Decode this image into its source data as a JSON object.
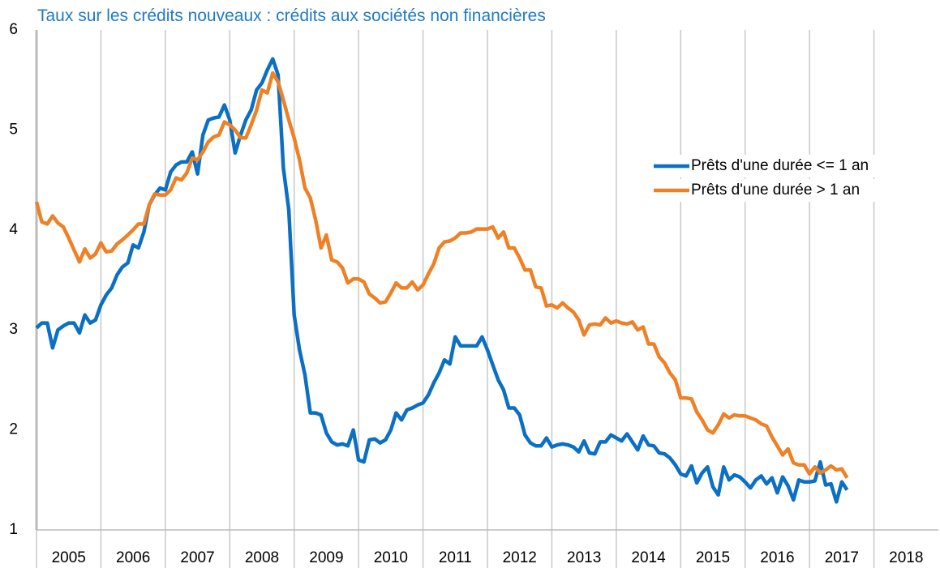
{
  "chart_data": {
    "type": "line",
    "title": "Taux sur les crédits nouveaux : crédits aux sociétés non financières",
    "x": [
      2005,
      2005.083,
      2005.167,
      2005.25,
      2005.333,
      2005.417,
      2005.5,
      2005.583,
      2005.667,
      2005.75,
      2005.833,
      2005.917,
      2006,
      2006.083,
      2006.167,
      2006.25,
      2006.333,
      2006.417,
      2006.5,
      2006.583,
      2006.667,
      2006.75,
      2006.833,
      2006.917,
      2007,
      2007.083,
      2007.167,
      2007.25,
      2007.333,
      2007.417,
      2007.5,
      2007.583,
      2007.667,
      2007.75,
      2007.833,
      2007.917,
      2008,
      2008.083,
      2008.167,
      2008.25,
      2008.333,
      2008.417,
      2008.5,
      2008.583,
      2008.667,
      2008.75,
      2008.833,
      2008.917,
      2009,
      2009.083,
      2009.167,
      2009.25,
      2009.333,
      2009.417,
      2009.5,
      2009.583,
      2009.667,
      2009.75,
      2009.833,
      2009.917,
      2010,
      2010.083,
      2010.167,
      2010.25,
      2010.333,
      2010.417,
      2010.5,
      2010.583,
      2010.667,
      2010.75,
      2010.833,
      2010.917,
      2011,
      2011.083,
      2011.167,
      2011.25,
      2011.333,
      2011.417,
      2011.5,
      2011.583,
      2011.667,
      2011.75,
      2011.833,
      2011.917,
      2012,
      2012.083,
      2012.167,
      2012.25,
      2012.333,
      2012.417,
      2012.5,
      2012.583,
      2012.667,
      2012.75,
      2012.833,
      2012.917,
      2013,
      2013.083,
      2013.167,
      2013.25,
      2013.333,
      2013.417,
      2013.5,
      2013.583,
      2013.667,
      2013.75,
      2013.833,
      2013.917,
      2014,
      2014.083,
      2014.167,
      2014.25,
      2014.333,
      2014.417,
      2014.5,
      2014.583,
      2014.667,
      2014.75,
      2014.833,
      2014.917,
      2015,
      2015.083,
      2015.167,
      2015.25,
      2015.333,
      2015.417,
      2015.5,
      2015.583,
      2015.667,
      2015.75,
      2015.833,
      2015.917,
      2016,
      2016.083,
      2016.167,
      2016.25,
      2016.333,
      2016.417,
      2016.5,
      2016.583,
      2016.667,
      2016.75,
      2016.833,
      2016.917,
      2017,
      2017.083,
      2017.167,
      2017.25,
      2017.333,
      2017.417,
      2017.5,
      2017.583
    ],
    "series": [
      {
        "name": "Prêts d'une durée <= 1 an",
        "color": "#0b6fc4",
        "values": [
          3.02,
          3.07,
          3.07,
          2.82,
          3.0,
          3.04,
          3.07,
          3.07,
          2.97,
          3.15,
          3.07,
          3.1,
          3.25,
          3.35,
          3.42,
          3.55,
          3.63,
          3.67,
          3.85,
          3.82,
          3.98,
          4.25,
          4.35,
          4.42,
          4.4,
          4.58,
          4.65,
          4.68,
          4.68,
          4.78,
          4.56,
          4.95,
          5.1,
          5.12,
          5.13,
          5.25,
          5.1,
          4.77,
          4.95,
          5.1,
          5.2,
          5.4,
          5.47,
          5.6,
          5.71,
          5.55,
          4.62,
          4.2,
          3.15,
          2.8,
          2.55,
          2.17,
          2.17,
          2.15,
          1.97,
          1.88,
          1.85,
          1.86,
          1.84,
          2.0,
          1.7,
          1.68,
          1.9,
          1.91,
          1.87,
          1.9,
          2.0,
          2.17,
          2.1,
          2.2,
          2.22,
          2.25,
          2.27,
          2.35,
          2.47,
          2.57,
          2.7,
          2.66,
          2.93,
          2.84,
          2.84,
          2.84,
          2.84,
          2.93,
          2.8,
          2.65,
          2.5,
          2.4,
          2.22,
          2.22,
          2.15,
          1.95,
          1.87,
          1.84,
          1.84,
          1.92,
          1.83,
          1.85,
          1.86,
          1.85,
          1.83,
          1.78,
          1.89,
          1.77,
          1.76,
          1.88,
          1.88,
          1.95,
          1.92,
          1.89,
          1.96,
          1.88,
          1.8,
          1.94,
          1.85,
          1.84,
          1.77,
          1.76,
          1.72,
          1.65,
          1.56,
          1.54,
          1.64,
          1.47,
          1.57,
          1.63,
          1.43,
          1.35,
          1.63,
          1.5,
          1.55,
          1.53,
          1.48,
          1.42,
          1.5,
          1.54,
          1.46,
          1.52,
          1.37,
          1.53,
          1.44,
          1.3,
          1.5,
          1.48,
          1.48,
          1.49,
          1.68,
          1.45,
          1.46,
          1.28,
          1.48,
          1.4
        ]
      },
      {
        "name": "Prêts d'une durée > 1 an",
        "color": "#ee8126",
        "values": [
          4.28,
          4.08,
          4.06,
          4.14,
          4.07,
          4.03,
          3.92,
          3.8,
          3.68,
          3.81,
          3.72,
          3.76,
          3.87,
          3.78,
          3.79,
          3.86,
          3.9,
          3.95,
          4.0,
          4.06,
          4.06,
          4.25,
          4.36,
          4.35,
          4.35,
          4.4,
          4.52,
          4.5,
          4.57,
          4.72,
          4.7,
          4.78,
          4.88,
          4.93,
          4.95,
          5.08,
          5.05,
          5.0,
          4.92,
          4.92,
          5.05,
          5.2,
          5.4,
          5.37,
          5.57,
          5.48,
          5.3,
          5.1,
          4.92,
          4.7,
          4.42,
          4.32,
          4.1,
          3.82,
          3.95,
          3.7,
          3.68,
          3.62,
          3.47,
          3.51,
          3.51,
          3.48,
          3.36,
          3.32,
          3.27,
          3.28,
          3.37,
          3.47,
          3.42,
          3.42,
          3.48,
          3.4,
          3.45,
          3.56,
          3.66,
          3.82,
          3.88,
          3.89,
          3.92,
          3.97,
          3.97,
          3.98,
          4.01,
          4.01,
          4.01,
          4.03,
          3.92,
          3.98,
          3.82,
          3.82,
          3.72,
          3.6,
          3.6,
          3.43,
          3.42,
          3.24,
          3.25,
          3.22,
          3.27,
          3.22,
          3.18,
          3.1,
          2.95,
          3.05,
          3.06,
          3.05,
          3.12,
          3.07,
          3.09,
          3.07,
          3.06,
          3.08,
          3.0,
          3.03,
          2.86,
          2.86,
          2.73,
          2.67,
          2.57,
          2.5,
          2.32,
          2.32,
          2.31,
          2.18,
          2.1,
          2.0,
          1.97,
          2.05,
          2.16,
          2.12,
          2.15,
          2.14,
          2.14,
          2.12,
          2.1,
          2.06,
          2.04,
          1.93,
          1.84,
          1.75,
          1.81,
          1.67,
          1.65,
          1.65,
          1.56,
          1.63,
          1.57,
          1.6,
          1.64,
          1.6,
          1.61,
          1.52
        ]
      }
    ],
    "xlim": [
      2005,
      2019
    ],
    "xticks": [
      2005,
      2006,
      2007,
      2008,
      2009,
      2010,
      2011,
      2012,
      2013,
      2014,
      2015,
      2016,
      2017,
      2018
    ],
    "ylim": [
      1,
      6
    ],
    "yticks": [
      1,
      2,
      3,
      4,
      5,
      6
    ],
    "grid": true,
    "legend": "right"
  }
}
